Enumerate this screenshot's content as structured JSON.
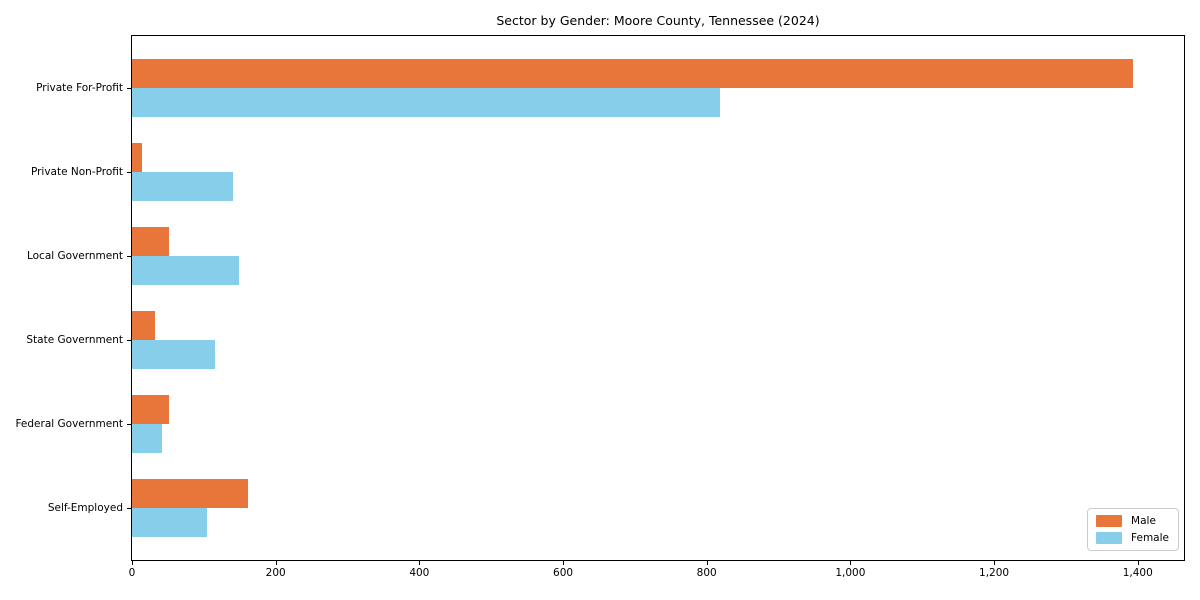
{
  "title": "Sector by Gender: Moore County, Tennessee (2024)",
  "chart_data": {
    "type": "bar",
    "orientation": "horizontal",
    "title": "Sector by Gender: Moore County, Tennessee (2024)",
    "xlabel": "",
    "ylabel": "",
    "categories": [
      "Private For-Profit",
      "Private Non-Profit",
      "Local Government",
      "State Government",
      "Federal Government",
      "Self-Employed"
    ],
    "series": [
      {
        "name": "Male",
        "color": "#e8763b",
        "values": [
          1393,
          14,
          52,
          32,
          51,
          162
        ]
      },
      {
        "name": "Female",
        "color": "#87ceeb",
        "values": [
          818,
          141,
          149,
          115,
          41,
          104
        ]
      }
    ],
    "xlim": [
      0,
      1463
    ],
    "xticks": [
      0,
      200,
      400,
      600,
      800,
      1000,
      1200,
      1400
    ],
    "xtick_labels": [
      "0",
      "200",
      "400",
      "600",
      "800",
      "1,000",
      "1,200",
      "1,400"
    ],
    "grid": false,
    "legend": {
      "position": "lower right",
      "entries": [
        "Male",
        "Female"
      ]
    }
  }
}
